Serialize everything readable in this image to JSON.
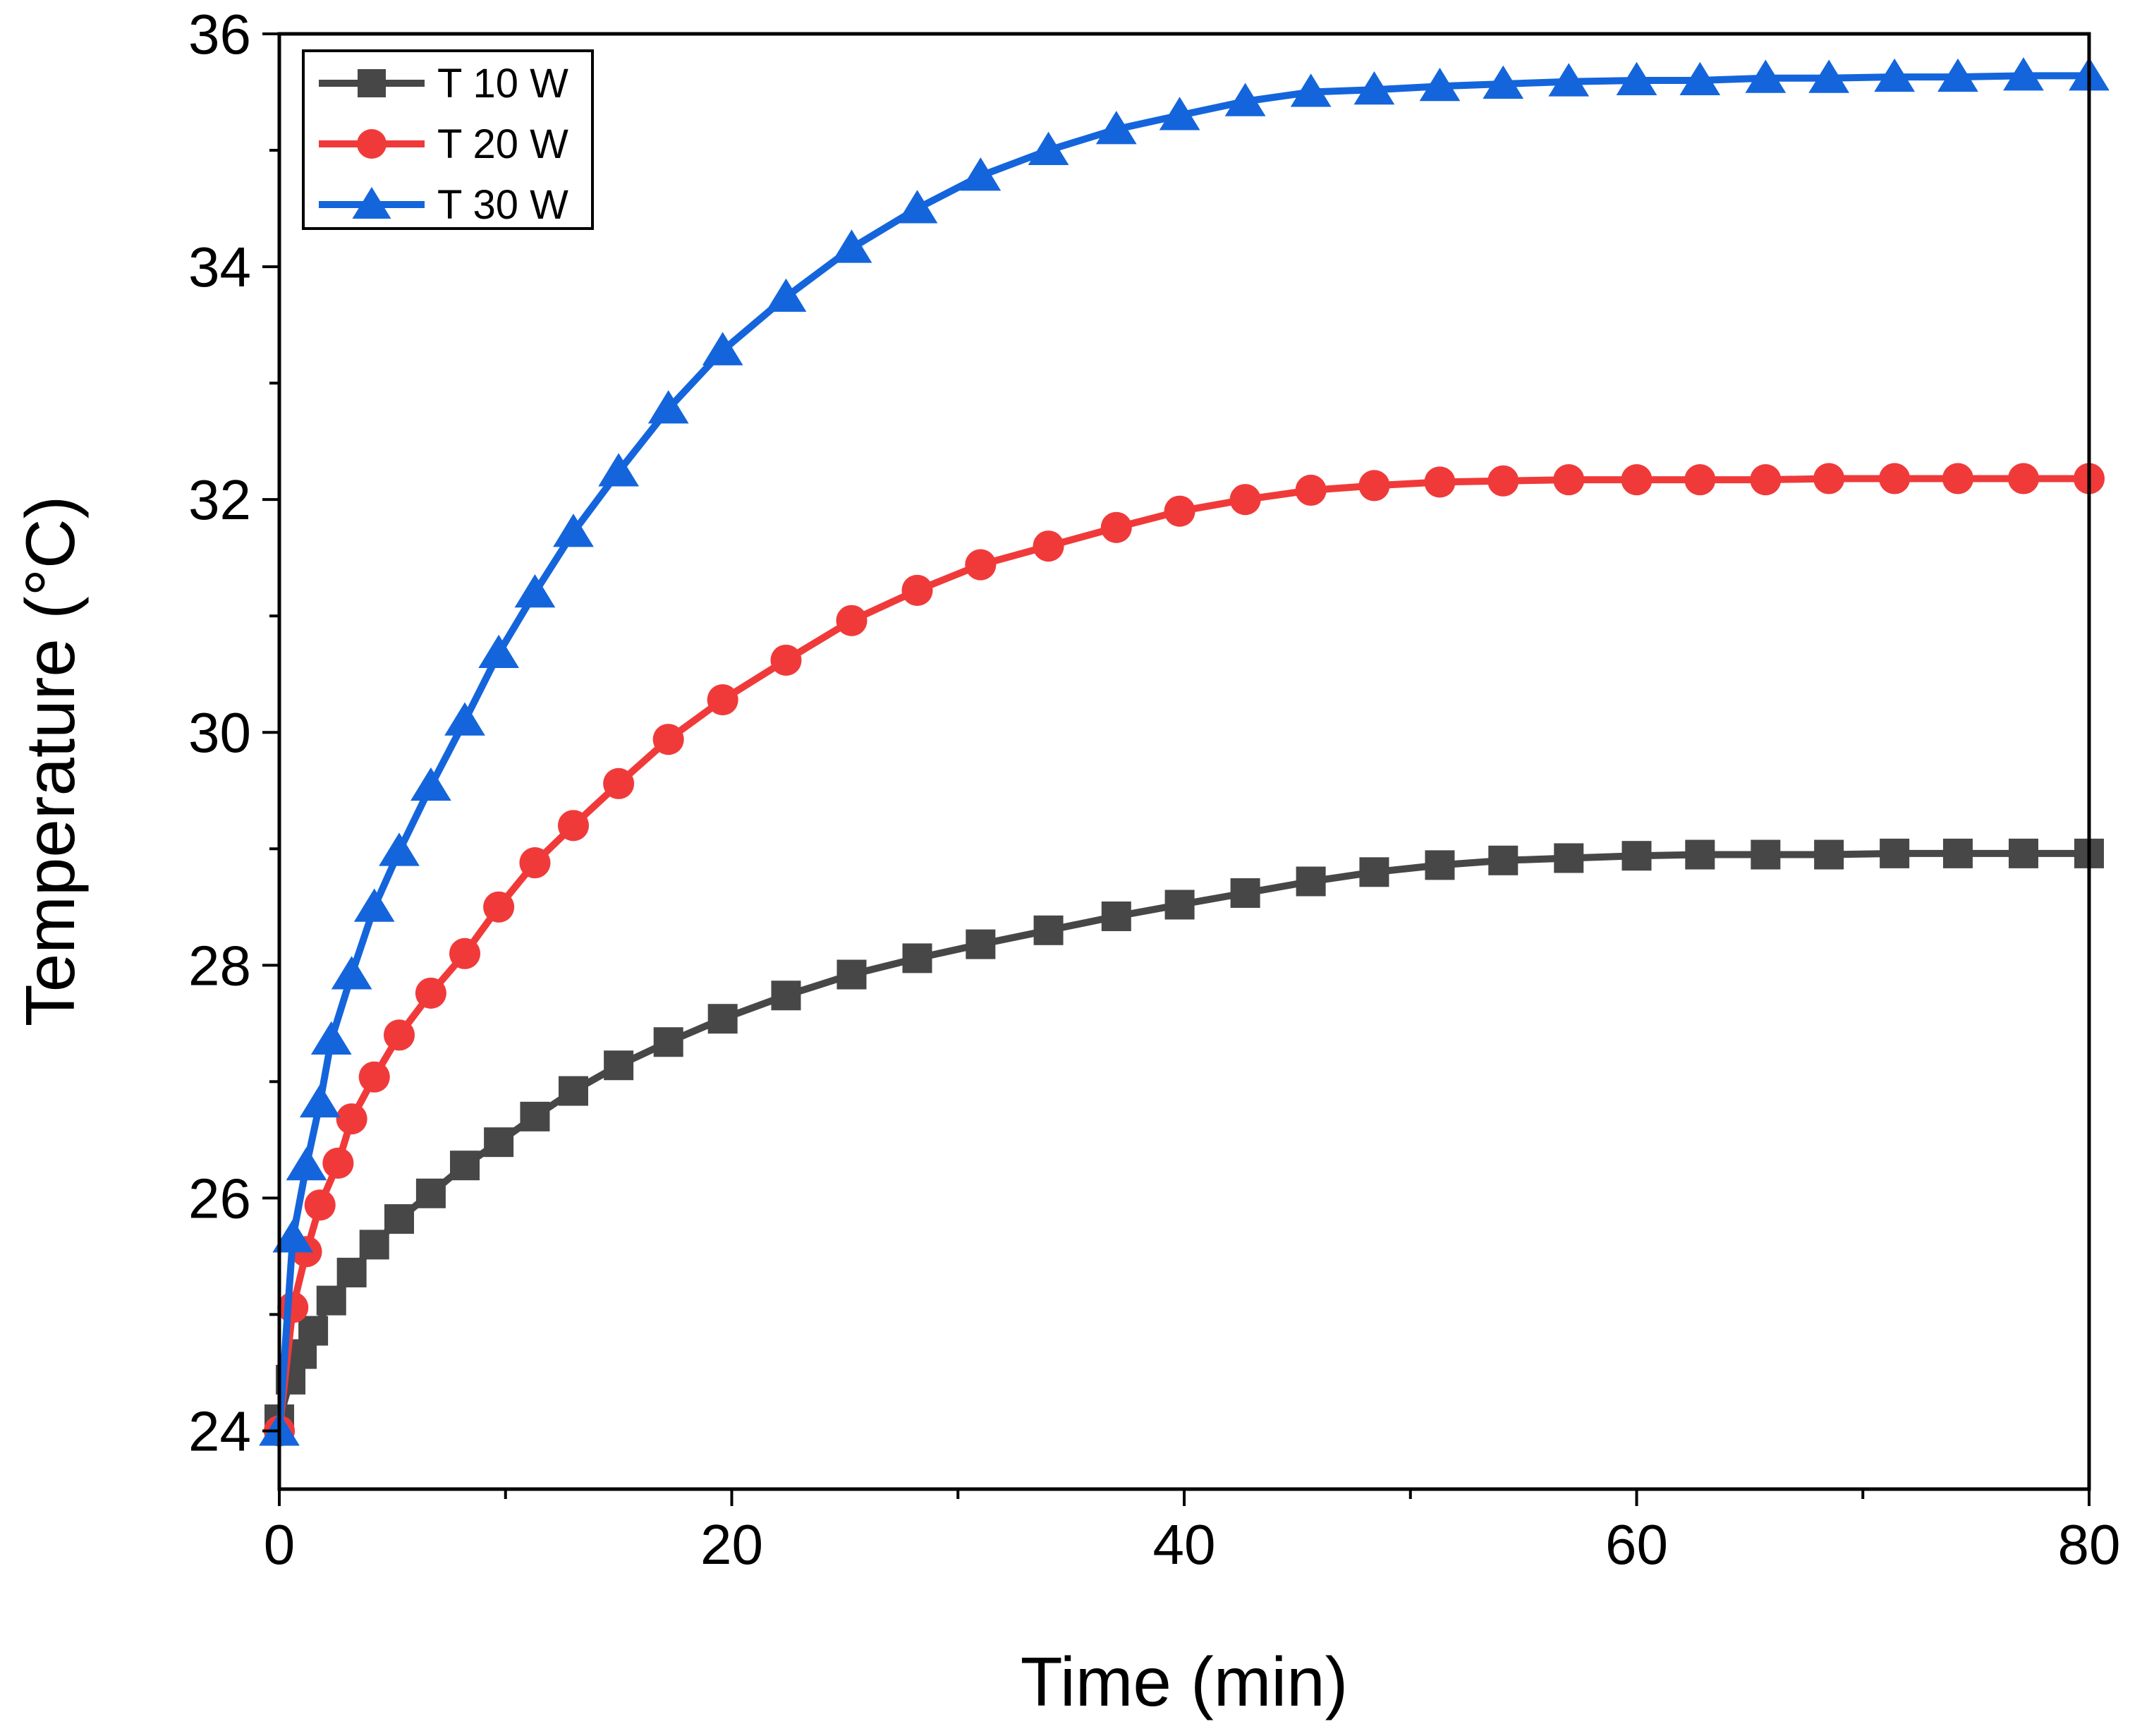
{
  "chart_data": {
    "type": "line",
    "title": "",
    "xlabel": "Time (min)",
    "ylabel": "Temperature (°C)",
    "xlim": [
      0,
      80
    ],
    "ylim": [
      23.5,
      36
    ],
    "x_ticks": [
      0,
      20,
      40,
      60,
      80
    ],
    "y_ticks": [
      24,
      26,
      28,
      30,
      32,
      34,
      36
    ],
    "grid": false,
    "legend_position": "top-left",
    "series": [
      {
        "name": "T 10 W",
        "color": "#474747",
        "marker": "square",
        "x": [
          0,
          0.5,
          1.0,
          1.5,
          2.3,
          3.2,
          4.2,
          5.3,
          6.7,
          8.2,
          9.7,
          11.3,
          13.0,
          15.0,
          17.2,
          19.6,
          22.4,
          25.3,
          28.2,
          31.0,
          34.0,
          37.0,
          39.8,
          42.7,
          45.6,
          48.4,
          51.3,
          54.1,
          57.0,
          60.0,
          62.8,
          65.7,
          68.5,
          71.4,
          74.2,
          77.1,
          80.0
        ],
        "values": [
          24.1,
          24.44,
          24.66,
          24.86,
          25.12,
          25.36,
          25.6,
          25.82,
          26.04,
          26.28,
          26.48,
          26.7,
          26.92,
          27.14,
          27.34,
          27.54,
          27.74,
          27.92,
          28.06,
          28.18,
          28.3,
          28.42,
          28.52,
          28.62,
          28.72,
          28.8,
          28.86,
          28.9,
          28.92,
          28.94,
          28.95,
          28.95,
          28.95,
          28.96,
          28.96,
          28.96,
          28.96
        ]
      },
      {
        "name": "T 20 W",
        "color": "#f03a3a",
        "marker": "circle",
        "x": [
          0,
          0.6,
          1.2,
          1.8,
          2.6,
          3.2,
          4.2,
          5.3,
          6.7,
          8.2,
          9.7,
          11.3,
          13.0,
          15.0,
          17.2,
          19.6,
          22.4,
          25.3,
          28.2,
          31.0,
          34.0,
          37.0,
          39.8,
          42.7,
          45.6,
          48.4,
          51.3,
          54.1,
          57.0,
          60.0,
          62.8,
          65.7,
          68.5,
          71.4,
          74.2,
          77.1,
          80.0
        ],
        "values": [
          24.0,
          25.06,
          25.54,
          25.94,
          26.3,
          26.68,
          27.04,
          27.4,
          27.76,
          28.1,
          28.5,
          28.88,
          29.2,
          29.56,
          29.94,
          30.28,
          30.62,
          30.96,
          31.22,
          31.44,
          31.6,
          31.76,
          31.9,
          32.0,
          32.08,
          32.12,
          32.15,
          32.16,
          32.17,
          32.17,
          32.17,
          32.17,
          32.18,
          32.18,
          32.18,
          32.18,
          32.18
        ]
      },
      {
        "name": "T 30 W",
        "color": "#1465dc",
        "marker": "triangle",
        "x": [
          0,
          0.6,
          1.2,
          1.8,
          2.3,
          3.2,
          4.2,
          5.3,
          6.7,
          8.2,
          9.7,
          11.3,
          13.0,
          15.0,
          17.2,
          19.6,
          22.4,
          25.3,
          28.2,
          31.0,
          34.0,
          37.0,
          39.8,
          42.7,
          45.6,
          48.4,
          51.3,
          54.1,
          57.0,
          60.0,
          62.8,
          65.7,
          68.5,
          71.4,
          74.2,
          77.1,
          80.0
        ],
        "values": [
          24.0,
          25.66,
          26.28,
          26.82,
          27.36,
          27.92,
          28.5,
          28.98,
          29.54,
          30.1,
          30.68,
          31.2,
          31.72,
          32.24,
          32.78,
          33.28,
          33.74,
          34.16,
          34.5,
          34.78,
          35.0,
          35.18,
          35.3,
          35.42,
          35.5,
          35.52,
          35.55,
          35.57,
          35.59,
          35.6,
          35.6,
          35.62,
          35.62,
          35.63,
          35.63,
          35.64,
          35.64
        ]
      }
    ]
  }
}
